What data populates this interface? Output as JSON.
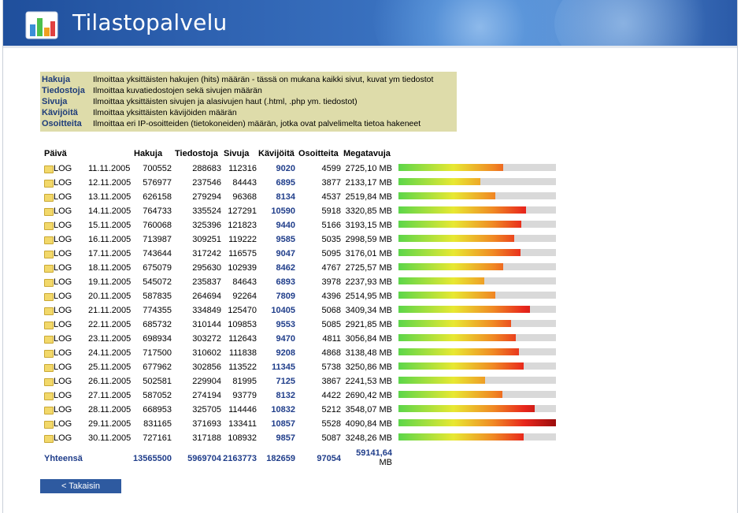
{
  "app": {
    "title": "Tilastopalvelu"
  },
  "legend": [
    {
      "term": "Hakuja",
      "desc": "Ilmoittaa yksittäisten hakujen (hits) määrän - tässä on mukana kaikki sivut, kuvat ym tiedostot"
    },
    {
      "term": "Tiedostoja",
      "desc": "Ilmoittaa kuvatiedostojen sekä sivujen määrän"
    },
    {
      "term": "Sivuja",
      "desc": "Ilmoittaa yksittäisten sivujen ja alasivujen haut (.html, .php ym. tiedostot)"
    },
    {
      "term": "Kävijöitä",
      "desc": "Ilmoittaa yksittäisten kävijöiden määrän"
    },
    {
      "term": "Osoitteita",
      "desc": "Ilmoittaa eri IP-osoitteiden (tietokoneiden) määrän, jotka ovat palvelimelta tietoa hakeneet"
    }
  ],
  "table": {
    "headers": {
      "paiva": "Päivä",
      "hakuja": "Hakuja",
      "tiedostoja": "Tiedostoja",
      "sivuja": "Sivuja",
      "kavijoita": "Kävijöitä",
      "osoitteita": "Osoitteita",
      "megatavuja": "Megatavuja"
    },
    "log_label": "LOG",
    "max_mb": 4090.84,
    "rows": [
      {
        "date": "11.11.2005",
        "hakuja": "700552",
        "tiedostoja": "288683",
        "sivuja": "112316",
        "kavijoita": "9020",
        "osoitteita": "4599",
        "mb": "2725,10 MB",
        "mb_value": 2725.1
      },
      {
        "date": "12.11.2005",
        "hakuja": "576977",
        "tiedostoja": "237546",
        "sivuja": "84443",
        "kavijoita": "6895",
        "osoitteita": "3877",
        "mb": "2133,17 MB",
        "mb_value": 2133.17
      },
      {
        "date": "13.11.2005",
        "hakuja": "626158",
        "tiedostoja": "279294",
        "sivuja": "96368",
        "kavijoita": "8134",
        "osoitteita": "4537",
        "mb": "2519,84 MB",
        "mb_value": 2519.84
      },
      {
        "date": "14.11.2005",
        "hakuja": "764733",
        "tiedostoja": "335524",
        "sivuja": "127291",
        "kavijoita": "10590",
        "osoitteita": "5918",
        "mb": "3320,85 MB",
        "mb_value": 3320.85
      },
      {
        "date": "15.11.2005",
        "hakuja": "760068",
        "tiedostoja": "325396",
        "sivuja": "121823",
        "kavijoita": "9440",
        "osoitteita": "5166",
        "mb": "3193,15 MB",
        "mb_value": 3193.15
      },
      {
        "date": "16.11.2005",
        "hakuja": "713987",
        "tiedostoja": "309251",
        "sivuja": "119222",
        "kavijoita": "9585",
        "osoitteita": "5035",
        "mb": "2998,59 MB",
        "mb_value": 2998.59
      },
      {
        "date": "17.11.2005",
        "hakuja": "743644",
        "tiedostoja": "317242",
        "sivuja": "116575",
        "kavijoita": "9047",
        "osoitteita": "5095",
        "mb": "3176,01 MB",
        "mb_value": 3176.01
      },
      {
        "date": "18.11.2005",
        "hakuja": "675079",
        "tiedostoja": "295630",
        "sivuja": "102939",
        "kavijoita": "8462",
        "osoitteita": "4767",
        "mb": "2725,57 MB",
        "mb_value": 2725.57
      },
      {
        "date": "19.11.2005",
        "hakuja": "545072",
        "tiedostoja": "235837",
        "sivuja": "84643",
        "kavijoita": "6893",
        "osoitteita": "3978",
        "mb": "2237,93 MB",
        "mb_value": 2237.93
      },
      {
        "date": "20.11.2005",
        "hakuja": "587835",
        "tiedostoja": "264694",
        "sivuja": "92264",
        "kavijoita": "7809",
        "osoitteita": "4396",
        "mb": "2514,95 MB",
        "mb_value": 2514.95
      },
      {
        "date": "21.11.2005",
        "hakuja": "774355",
        "tiedostoja": "334849",
        "sivuja": "125470",
        "kavijoita": "10405",
        "osoitteita": "5068",
        "mb": "3409,34 MB",
        "mb_value": 3409.34
      },
      {
        "date": "22.11.2005",
        "hakuja": "685732",
        "tiedostoja": "310144",
        "sivuja": "109853",
        "kavijoita": "9553",
        "osoitteita": "5085",
        "mb": "2921,85 MB",
        "mb_value": 2921.85
      },
      {
        "date": "23.11.2005",
        "hakuja": "698934",
        "tiedostoja": "303272",
        "sivuja": "112643",
        "kavijoita": "9470",
        "osoitteita": "4811",
        "mb": "3056,84 MB",
        "mb_value": 3056.84
      },
      {
        "date": "24.11.2005",
        "hakuja": "717500",
        "tiedostoja": "310602",
        "sivuja": "111838",
        "kavijoita": "9208",
        "osoitteita": "4868",
        "mb": "3138,48 MB",
        "mb_value": 3138.48
      },
      {
        "date": "25.11.2005",
        "hakuja": "677962",
        "tiedostoja": "302856",
        "sivuja": "113522",
        "kavijoita": "11345",
        "osoitteita": "5738",
        "mb": "3250,86 MB",
        "mb_value": 3250.86
      },
      {
        "date": "26.11.2005",
        "hakuja": "502581",
        "tiedostoja": "229904",
        "sivuja": "81995",
        "kavijoita": "7125",
        "osoitteita": "3867",
        "mb": "2241,53 MB",
        "mb_value": 2241.53
      },
      {
        "date": "27.11.2005",
        "hakuja": "587052",
        "tiedostoja": "274194",
        "sivuja": "93779",
        "kavijoita": "8132",
        "osoitteita": "4422",
        "mb": "2690,42 MB",
        "mb_value": 2690.42
      },
      {
        "date": "28.11.2005",
        "hakuja": "668953",
        "tiedostoja": "325705",
        "sivuja": "114446",
        "kavijoita": "10832",
        "osoitteita": "5212",
        "mb": "3548,07 MB",
        "mb_value": 3548.07
      },
      {
        "date": "29.11.2005",
        "hakuja": "831165",
        "tiedostoja": "371693",
        "sivuja": "133411",
        "kavijoita": "10857",
        "osoitteita": "5528",
        "mb": "4090,84 MB",
        "mb_value": 4090.84
      },
      {
        "date": "30.11.2005",
        "hakuja": "727161",
        "tiedostoja": "317188",
        "sivuja": "108932",
        "kavijoita": "9857",
        "osoitteita": "5087",
        "mb": "3248,26 MB",
        "mb_value": 3248.26
      }
    ],
    "totals": {
      "label": "Yhteensä",
      "hakuja": "13565500",
      "tiedostoja": "5969704",
      "sivuja": "2163773",
      "kavijoita": "182659",
      "osoitteita": "97054",
      "mb_number": "59141,64",
      "mb_unit": "MB"
    }
  },
  "back_button": "< Takaisin",
  "colors": {
    "header": "#2f63b2",
    "accent": "#1f3d8a",
    "legend_bg": "#dedcaa",
    "bar_bg": "#d9d9d9"
  }
}
